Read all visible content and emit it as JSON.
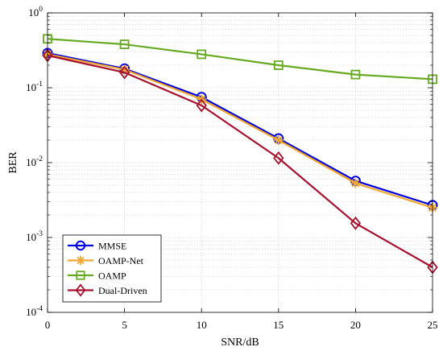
{
  "chart_data": {
    "type": "line",
    "title": "",
    "xlabel": "SNR/dB",
    "ylabel": "BER",
    "yscale": "log",
    "xlim": [
      0,
      25
    ],
    "ylim": [
      0.0001,
      1
    ],
    "grid": true,
    "legend_position": "bottom-left",
    "x": [
      0,
      5,
      10,
      15,
      20,
      25
    ],
    "x_ticks": [
      "0",
      "5",
      "10",
      "15",
      "20",
      "25"
    ],
    "y_tick_values": [
      0.0001,
      0.001,
      0.01,
      0.1,
      1
    ],
    "y_tick_exponents": [
      "-4",
      "-3",
      "-2",
      "-1",
      "0"
    ],
    "y_tick_base": "10",
    "series": [
      {
        "name": "MMSE",
        "color": "#0000e6",
        "marker": "circle",
        "values": [
          0.29,
          0.18,
          0.075,
          0.021,
          0.0057,
          0.0027
        ]
      },
      {
        "name": "OAMP-Net",
        "color": "#f0a830",
        "marker": "asterisk",
        "values": [
          0.28,
          0.175,
          0.07,
          0.02,
          0.0053,
          0.0025
        ]
      },
      {
        "name": "OAMP",
        "color": "#66aa22",
        "marker": "square",
        "values": [
          0.45,
          0.38,
          0.28,
          0.2,
          0.15,
          0.13
        ]
      },
      {
        "name": "Dual-Driven",
        "color": "#a8102e",
        "marker": "diamond",
        "values": [
          0.27,
          0.16,
          0.058,
          0.0115,
          0.00155,
          0.0004
        ]
      }
    ]
  }
}
